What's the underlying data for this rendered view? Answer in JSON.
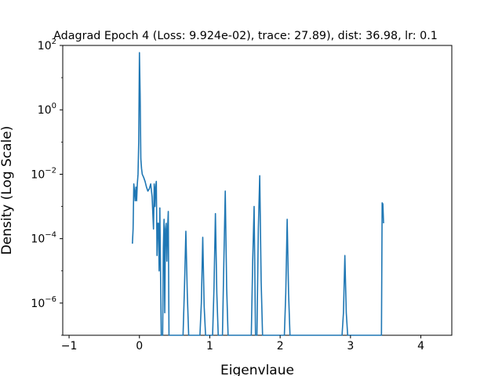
{
  "chart_data": {
    "type": "line",
    "title": "Adagrad Epoch 4 (Loss: 9.924e-02), trace: 27.89), dist: 36.98, lr: 0.1",
    "xlabel": "Eigenvlaue",
    "ylabel": "Density (Log Scale)",
    "xscale": "linear",
    "yscale": "log",
    "xlim": [
      -1.09,
      4.44
    ],
    "ylim": [
      1e-07,
      100.0
    ],
    "x_ticks": [
      -1,
      0,
      1,
      2,
      3,
      4
    ],
    "x_tick_labels": [
      "−1",
      "0",
      "1",
      "2",
      "3",
      "4"
    ],
    "y_ticks": [
      100,
      1,
      0.01,
      0.0001,
      1e-06
    ],
    "y_tick_labels": [
      {
        "base": "10",
        "exp": "2"
      },
      {
        "base": "10",
        "exp": "0"
      },
      {
        "base": "10",
        "exp": "−2"
      },
      {
        "base": "10",
        "exp": "−4"
      },
      {
        "base": "10",
        "exp": "−6"
      }
    ],
    "grid": false,
    "legend": "none",
    "color": "#1f77b4",
    "series": [
      {
        "x": [
          -0.1,
          -0.09,
          -0.08,
          -0.07,
          -0.06,
          -0.05,
          -0.04,
          -0.03,
          -0.02,
          -0.01,
          0.0,
          0.01,
          0.02,
          0.03,
          0.04,
          0.06,
          0.08,
          0.1,
          0.12,
          0.14,
          0.16,
          0.18,
          0.2,
          0.21,
          0.22,
          0.23,
          0.24,
          0.25,
          0.26,
          0.27,
          0.28,
          0.29,
          0.3,
          0.31,
          0.33,
          0.34,
          0.35,
          0.36,
          0.37,
          0.38,
          0.39,
          0.4,
          0.41,
          0.42,
          0.45,
          0.62,
          0.64,
          0.66,
          0.68,
          0.7,
          0.86,
          0.88,
          0.9,
          0.92,
          0.94,
          1.04,
          1.06,
          1.08,
          1.1,
          1.12,
          1.18,
          1.2,
          1.22,
          1.24,
          1.26,
          1.59,
          1.61,
          1.63,
          1.65,
          1.67,
          1.69,
          1.71,
          1.73,
          1.75,
          2.06,
          2.08,
          2.1,
          2.12,
          2.14,
          2.88,
          2.9,
          2.92,
          2.94,
          2.96,
          3.43,
          3.44,
          3.45,
          3.46,
          3.47
        ],
        "y": [
          7e-05,
          0.0002,
          0.005,
          0.003,
          0.0015,
          0.004,
          0.0015,
          0.005,
          0.01,
          0.1,
          60,
          3,
          0.03,
          0.015,
          0.01,
          0.008,
          0.006,
          0.004,
          0.003,
          0.0035,
          0.005,
          0.002,
          0.0002,
          0.005,
          0.001,
          0.004,
          0.006,
          3e-05,
          0.0003,
          0.0003,
          1e-05,
          0.0009,
          1e-05,
          1e-07,
          1e-07,
          5e-05,
          0.0004,
          5e-07,
          0.0002,
          0.0003,
          2e-05,
          0.0002,
          0.0007,
          1e-07,
          1e-07,
          1e-07,
          3e-06,
          0.00017,
          2e-06,
          1e-07,
          1e-07,
          1e-06,
          0.00011,
          8e-07,
          1e-07,
          1e-07,
          3e-06,
          0.0006,
          2e-06,
          1e-07,
          1e-07,
          2e-05,
          0.003,
          3e-06,
          1e-07,
          1e-07,
          2e-05,
          0.001,
          1e-07,
          1e-07,
          0.0002,
          0.009,
          5e-06,
          1e-07,
          1e-07,
          2e-06,
          0.0004,
          2e-06,
          1e-07,
          1e-07,
          5e-07,
          3e-05,
          5e-07,
          1e-07,
          1e-07,
          1e-07,
          0.0013,
          0.0012,
          0.0003
        ]
      }
    ]
  }
}
